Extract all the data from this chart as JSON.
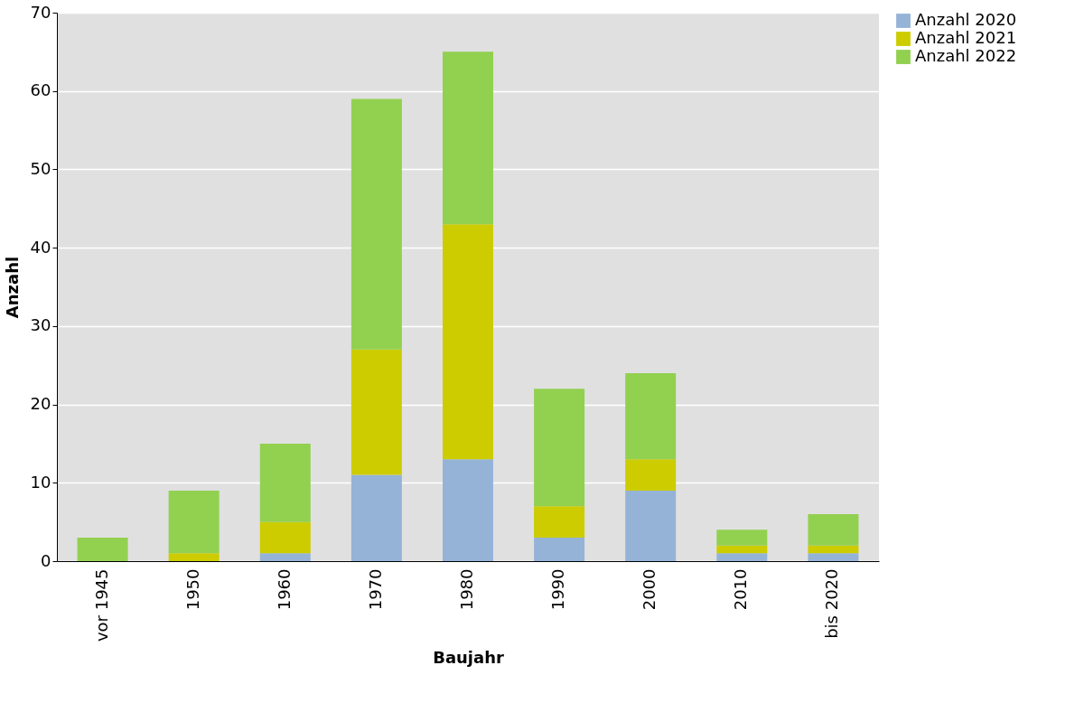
{
  "chart_data": {
    "type": "bar",
    "stacked": true,
    "xlabel": "Baujahr",
    "ylabel": "Anzahl",
    "categories": [
      "vor 1945",
      "1950",
      "1960",
      "1970",
      "1980",
      "1990",
      "2000",
      "2010",
      "bis 2020"
    ],
    "series": [
      {
        "name": "Anzahl 2020",
        "color": "#95b3d7",
        "values": [
          0,
          0,
          1,
          11,
          13,
          3,
          9,
          1,
          1
        ]
      },
      {
        "name": "Anzahl 2021",
        "color": "#cccc00",
        "values": [
          0,
          1,
          4,
          16,
          30,
          4,
          4,
          1,
          1
        ]
      },
      {
        "name": "Anzahl 2022",
        "color": "#92d050",
        "values": [
          3,
          8,
          10,
          32,
          22,
          15,
          11,
          2,
          4
        ]
      }
    ],
    "ylim": [
      0,
      70
    ],
    "yticks": [
      0,
      10,
      20,
      30,
      40,
      50,
      60,
      70
    ],
    "grid": "y",
    "legend": "right"
  }
}
